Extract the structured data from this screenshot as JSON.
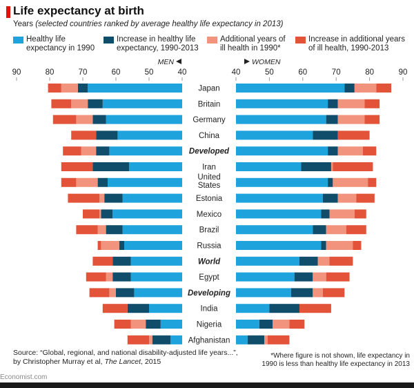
{
  "header": {
    "title": "Life expectancy at birth",
    "subtitle_lead": "Years ",
    "subtitle_italic": "(selected countries ranked by average healthy life expectancy in 2013)"
  },
  "legend": [
    {
      "label_line1": "Healthy life",
      "label_line2": "expectancy in 1990",
      "color": "#1fa3dd"
    },
    {
      "label_line1": "Increase in healthy life",
      "label_line2": "expectancy, 1990-2013",
      "color": "#0f4d6b"
    },
    {
      "label_line1": "Additional years of",
      "label_line2": "ill health in 1990*",
      "color": "#f2937e"
    },
    {
      "label_line1": "Increase in additional years",
      "label_line2": "of ill health, 1990-2013",
      "color": "#e2533a"
    }
  ],
  "chart_data": {
    "type": "bar",
    "subtype": "butterfly-stacked-horizontal",
    "men_label": "MEN",
    "women_label": "WOMEN",
    "men_axis": {
      "ticks": [
        90,
        80,
        70,
        60,
        50,
        40
      ],
      "range": [
        40,
        90
      ]
    },
    "women_axis": {
      "ticks": [
        40,
        50,
        60,
        70,
        80,
        90
      ],
      "range": [
        40,
        90
      ]
    },
    "segment_colors": [
      "#1fa3dd",
      "#0f4d6b",
      "#f2937e",
      "#e2533a"
    ],
    "countries": [
      {
        "name": "Japan",
        "bold": false,
        "men": [
          68.5,
          71.5,
          76.5,
          80.5
        ],
        "women": [
          72.5,
          75.5,
          82,
          86.5
        ]
      },
      {
        "name": "Britain",
        "bold": false,
        "men": [
          64,
          68.5,
          73.5,
          79.5
        ],
        "women": [
          67.5,
          70.5,
          78.5,
          83
        ]
      },
      {
        "name": "Germany",
        "bold": false,
        "men": [
          63,
          67,
          72,
          79
        ],
        "women": [
          67,
          70.5,
          78.5,
          83
        ]
      },
      {
        "name": "China",
        "bold": false,
        "men": [
          59.5,
          66,
          66,
          73.5
        ],
        "women": [
          63,
          70.5,
          70.5,
          80
        ]
      },
      {
        "name": "Developed",
        "bold": true,
        "men": [
          62,
          66,
          70.5,
          76
        ],
        "women": [
          67.5,
          70.5,
          78,
          82
        ]
      },
      {
        "name": "Iran",
        "bold": false,
        "men": [
          56,
          67,
          67,
          76.5
        ],
        "women": [
          59.5,
          68.5,
          69,
          81
        ]
      },
      {
        "name": "United States",
        "bold": false,
        "men": [
          62.5,
          65.5,
          72,
          76.5
        ],
        "women": [
          67.5,
          69,
          79.5,
          82
        ]
      },
      {
        "name": "Estonia",
        "bold": false,
        "men": [
          58,
          63.5,
          65,
          74.5
        ],
        "women": [
          66,
          70.5,
          76,
          81.5
        ]
      },
      {
        "name": "Mexico",
        "bold": false,
        "men": [
          61,
          64.5,
          65,
          70
        ],
        "women": [
          65.5,
          68,
          75.5,
          79
        ]
      },
      {
        "name": "Brazil",
        "bold": false,
        "men": [
          58,
          63,
          65.5,
          72
        ],
        "women": [
          63,
          67,
          73,
          79
        ]
      },
      {
        "name": "Russia",
        "bold": false,
        "men": [
          57.5,
          59,
          64.5,
          65.5
        ],
        "women": [
          65.5,
          67,
          75,
          77.5
        ]
      },
      {
        "name": "World",
        "bold": true,
        "men": [
          55.5,
          61,
          61,
          67
        ],
        "women": [
          59,
          64.5,
          68,
          75
        ]
      },
      {
        "name": "Egypt",
        "bold": false,
        "men": [
          55.5,
          61,
          63,
          69
        ],
        "women": [
          57.5,
          63,
          67,
          74
        ]
      },
      {
        "name": "Developing",
        "bold": true,
        "men": [
          54.5,
          60,
          62,
          68
        ],
        "women": [
          56.5,
          63,
          66,
          72.5
        ]
      },
      {
        "name": "India",
        "bold": false,
        "men": [
          50,
          56.5,
          56.5,
          64
        ],
        "women": [
          50,
          59,
          59,
          68.5
        ]
      },
      {
        "name": "Nigeria",
        "bold": false,
        "men": [
          46.5,
          51,
          55.5,
          60.5
        ],
        "women": [
          47,
          51,
          56,
          60.5
        ]
      },
      {
        "name": "Afghanistan",
        "bold": false,
        "men": [
          43.5,
          49,
          50,
          56.5
        ],
        "women": [
          43.5,
          48.5,
          49.5,
          56
        ]
      }
    ]
  },
  "source_lead": "Source: “Global, regional, and national disability-adjusted life years...”,",
  "source_line2a": "by Christopher Murray et al, ",
  "source_line2b": "The Lancet",
  "source_line2c": ", 2015",
  "footnote": "*Where figure is not shown, life expectancy in 1990 is less than healthy life expectancy in 2013",
  "brand": "Economist.com"
}
